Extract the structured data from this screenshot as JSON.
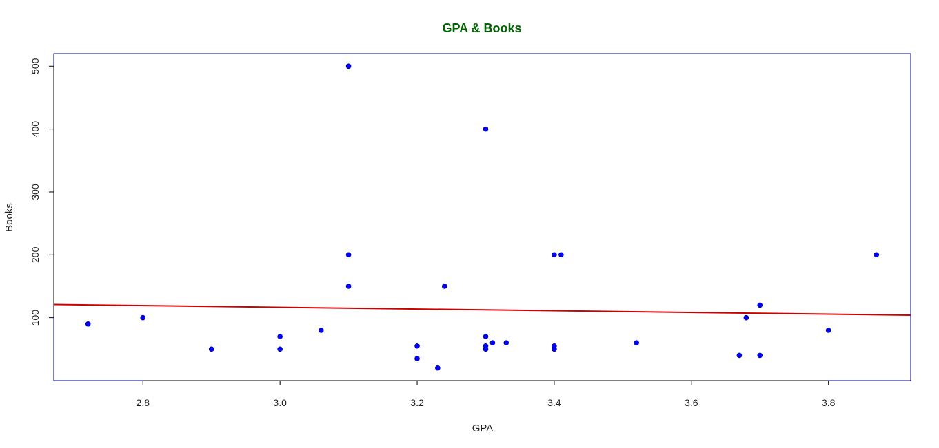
{
  "colors": {
    "title": "#006400",
    "frame": "#00008b",
    "points": "#0000ff",
    "regression_line": "#cc0000",
    "axis": "#000000"
  },
  "chart_data": {
    "type": "scatter",
    "title": "GPA & Books",
    "xlabel": "GPA",
    "ylabel": "Books",
    "xlim": [
      2.67,
      3.92
    ],
    "ylim": [
      0,
      520
    ],
    "x_ticks": [
      2.8,
      3.0,
      3.2,
      3.4,
      3.6,
      3.8
    ],
    "x_tick_labels": [
      "2.8",
      "3.0",
      "3.2",
      "3.4",
      "3.6",
      "3.8"
    ],
    "y_ticks": [
      100,
      200,
      300,
      400,
      500
    ],
    "y_tick_labels": [
      "100",
      "200",
      "300",
      "400",
      "500"
    ],
    "grid": false,
    "points": [
      {
        "x": 2.72,
        "y": 90
      },
      {
        "x": 2.8,
        "y": 100
      },
      {
        "x": 2.9,
        "y": 50
      },
      {
        "x": 3.0,
        "y": 70
      },
      {
        "x": 3.0,
        "y": 50
      },
      {
        "x": 3.06,
        "y": 80
      },
      {
        "x": 3.1,
        "y": 500
      },
      {
        "x": 3.1,
        "y": 200
      },
      {
        "x": 3.1,
        "y": 150
      },
      {
        "x": 3.2,
        "y": 55
      },
      {
        "x": 3.2,
        "y": 35
      },
      {
        "x": 3.23,
        "y": 20
      },
      {
        "x": 3.24,
        "y": 150
      },
      {
        "x": 3.3,
        "y": 400
      },
      {
        "x": 3.3,
        "y": 70
      },
      {
        "x": 3.3,
        "y": 55
      },
      {
        "x": 3.3,
        "y": 50
      },
      {
        "x": 3.31,
        "y": 60
      },
      {
        "x": 3.33,
        "y": 60
      },
      {
        "x": 3.4,
        "y": 200
      },
      {
        "x": 3.41,
        "y": 200
      },
      {
        "x": 3.4,
        "y": 55
      },
      {
        "x": 3.4,
        "y": 50
      },
      {
        "x": 3.52,
        "y": 60
      },
      {
        "x": 3.67,
        "y": 40
      },
      {
        "x": 3.68,
        "y": 100
      },
      {
        "x": 3.7,
        "y": 120
      },
      {
        "x": 3.7,
        "y": 40
      },
      {
        "x": 3.8,
        "y": 80
      },
      {
        "x": 3.87,
        "y": 200
      }
    ],
    "regression_line": {
      "x": [
        2.67,
        3.92
      ],
      "y": [
        121,
        104
      ]
    }
  }
}
